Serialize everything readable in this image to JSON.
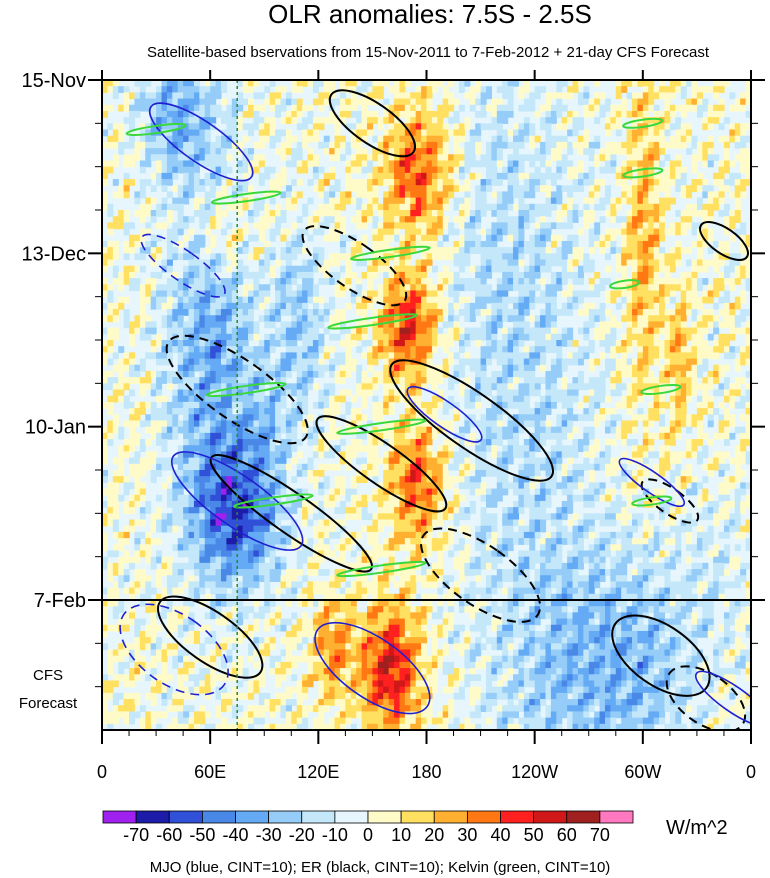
{
  "chart_data": {
    "type": "heatmap",
    "title": "OLR anomalies: 7.5S - 2.5S",
    "subtitle": "Satellite-based bservations from 15-Nov-2011 to 7-Feb-2012 + 21-day CFS Forecast",
    "x_ticks": [
      {
        "lon": 0,
        "label": "0"
      },
      {
        "lon": 60,
        "label": "60E"
      },
      {
        "lon": 120,
        "label": "120E"
      },
      {
        "lon": 180,
        "label": "180"
      },
      {
        "lon": 240,
        "label": "120W"
      },
      {
        "lon": 300,
        "label": "60W"
      },
      {
        "lon": 360,
        "label": "0"
      }
    ],
    "xlim": [
      0,
      360
    ],
    "y_axis": {
      "start": "15-Nov-2011",
      "observation_end": "7-Feb-2012",
      "forecast_days": 21,
      "total_days": 105
    },
    "y_ticks": [
      {
        "day": 0,
        "label": "15-Nov"
      },
      {
        "day": 28,
        "label": "13-Dec"
      },
      {
        "day": 56,
        "label": "10-Jan"
      },
      {
        "day": 84,
        "label": "7-Feb"
      }
    ],
    "forecast_label_lines": [
      "CFS",
      "Forecast"
    ],
    "colorbar": {
      "unit": "W/m^2",
      "levels": [
        -70,
        -60,
        -50,
        -40,
        -30,
        -20,
        -10,
        0,
        10,
        20,
        30,
        40,
        50,
        60,
        70
      ],
      "labels": [
        "-70",
        "-60",
        "-50",
        "-40",
        "-30",
        "-20",
        "-10",
        "0",
        "10",
        "20",
        "30",
        "40",
        "50",
        "60",
        "70"
      ],
      "colors": [
        "#a020f0",
        "#1c1ca8",
        "#3050d8",
        "#4a88e8",
        "#64aaf4",
        "#96cdf8",
        "#c4e8fa",
        "#e6f6fc",
        "#fffbc8",
        "#ffe060",
        "#ffb030",
        "#ff7814",
        "#ff2020",
        "#d01818",
        "#a02020",
        "#ff78c0"
      ]
    },
    "contours_legend": "MJO (blue, CINT=10); ER (black, CINT=10); Kelvin (green, CINT=10)",
    "series_colors": {
      "mjo": "#2020d0",
      "er": "#000000",
      "kelvin": "#3ad83a"
    },
    "er_contours": [
      {
        "lon": 75,
        "day": 50,
        "span_lon": 60,
        "span_day": 30,
        "sign": "neg"
      },
      {
        "lon": 105,
        "day": 70,
        "span_lon": 40,
        "span_day": 35,
        "sign": "pos"
      },
      {
        "lon": 155,
        "day": 62,
        "span_lon": 40,
        "span_day": 28,
        "sign": "pos"
      },
      {
        "lon": 140,
        "day": 30,
        "span_lon": 45,
        "span_day": 22,
        "sign": "neg"
      },
      {
        "lon": 150,
        "day": 7,
        "span_lon": 40,
        "span_day": 18,
        "sign": "pos"
      },
      {
        "lon": 205,
        "day": 55,
        "span_lon": 55,
        "span_day": 35,
        "sign": "pos"
      },
      {
        "lon": 210,
        "day": 80,
        "span_lon": 60,
        "span_day": 25,
        "sign": "neg"
      },
      {
        "lon": 310,
        "day": 93,
        "span_lon": 60,
        "span_day": 20,
        "sign": "pos"
      },
      {
        "lon": 335,
        "day": 100,
        "span_lon": 50,
        "span_day": 16,
        "sign": "neg"
      },
      {
        "lon": 345,
        "day": 26,
        "span_lon": 25,
        "span_day": 10,
        "sign": "pos"
      },
      {
        "lon": 315,
        "day": 68,
        "span_lon": 25,
        "span_day": 12,
        "sign": "neg"
      },
      {
        "lon": 60,
        "day": 90,
        "span_lon": 50,
        "span_day": 22,
        "sign": "pos"
      }
    ],
    "mjo_contours": [
      {
        "lon": 55,
        "day": 10,
        "span_lon": 40,
        "span_day": 22,
        "sign": "pos"
      },
      {
        "lon": 75,
        "day": 68,
        "span_lon": 50,
        "span_day": 28,
        "sign": "pos"
      },
      {
        "lon": 150,
        "day": 95,
        "span_lon": 60,
        "span_day": 24,
        "sign": "pos"
      },
      {
        "lon": 40,
        "day": 92,
        "span_lon": 70,
        "span_day": 22,
        "sign": "neg"
      },
      {
        "lon": 190,
        "day": 54,
        "span_lon": 25,
        "span_day": 16,
        "sign": "pos"
      },
      {
        "lon": 305,
        "day": 65,
        "span_lon": 20,
        "span_day": 14,
        "sign": "pos"
      },
      {
        "lon": 350,
        "day": 100,
        "span_lon": 25,
        "span_day": 16,
        "sign": "pos"
      },
      {
        "lon": 45,
        "day": 30,
        "span_lon": 30,
        "span_day": 18,
        "sign": "neg"
      }
    ],
    "kelvin_contours": [
      {
        "lon": 30,
        "day": 8,
        "span_lon": 60,
        "sign": "pos"
      },
      {
        "lon": 80,
        "day": 19,
        "span_lon": 70,
        "sign": "pos"
      },
      {
        "lon": 160,
        "day": 28,
        "span_lon": 80,
        "sign": "pos"
      },
      {
        "lon": 150,
        "day": 39,
        "span_lon": 90,
        "sign": "pos"
      },
      {
        "lon": 80,
        "day": 50,
        "span_lon": 80,
        "sign": "pos"
      },
      {
        "lon": 155,
        "day": 56,
        "span_lon": 90,
        "sign": "pos"
      },
      {
        "lon": 95,
        "day": 68,
        "span_lon": 80,
        "sign": "pos"
      },
      {
        "lon": 155,
        "day": 79,
        "span_lon": 90,
        "sign": "pos"
      },
      {
        "lon": 300,
        "day": 7,
        "span_lon": 40,
        "sign": "pos"
      },
      {
        "lon": 300,
        "day": 15,
        "span_lon": 40,
        "sign": "pos"
      },
      {
        "lon": 310,
        "day": 50,
        "span_lon": 40,
        "sign": "pos"
      },
      {
        "lon": 305,
        "day": 68,
        "span_lon": 40,
        "sign": "pos"
      },
      {
        "lon": 290,
        "day": 33,
        "span_lon": 30,
        "sign": "pos"
      }
    ]
  }
}
